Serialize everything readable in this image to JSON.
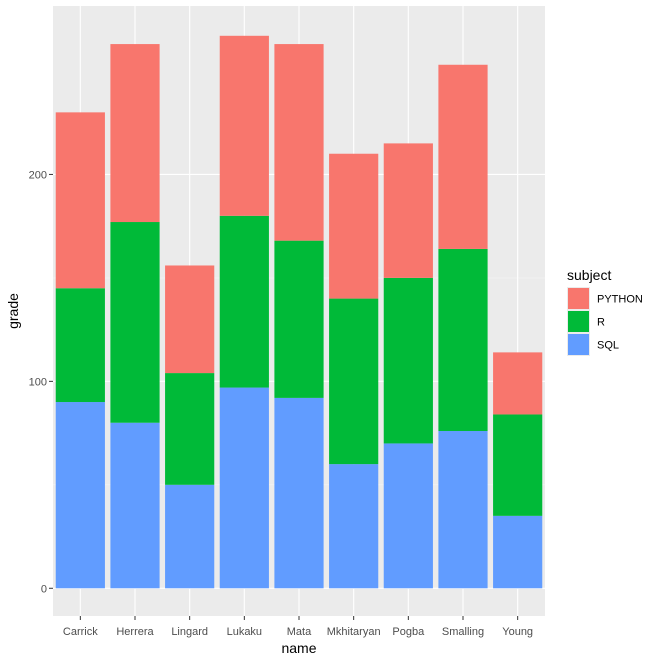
{
  "chart_data": {
    "type": "bar",
    "stacked": true,
    "xlabel": "name",
    "ylabel": "grade",
    "categories": [
      "Carrick",
      "Herrera",
      "Lingard",
      "Lukaku",
      "Mata",
      "Mkhitaryan",
      "Pogba",
      "Smalling",
      "Young"
    ],
    "series": [
      {
        "name": "SQL",
        "values": [
          90,
          80,
          50,
          97,
          92,
          60,
          70,
          76,
          35
        ]
      },
      {
        "name": "R",
        "values": [
          55,
          97,
          54,
          83,
          76,
          80,
          80,
          88,
          49
        ]
      },
      {
        "name": "PYTHON",
        "values": [
          85,
          86,
          52,
          87,
          95,
          70,
          65,
          89,
          30
        ]
      }
    ],
    "y_ticks": [
      0,
      100,
      200
    ],
    "ylim": [
      -13.4,
      281.4
    ],
    "grid": true,
    "legend": {
      "title": "subject",
      "placement": "right",
      "order": [
        "PYTHON",
        "R",
        "SQL"
      ]
    },
    "colors": {
      "PYTHON": "#F8766D",
      "R": "#00BA38",
      "SQL": "#619CFF",
      "panel_background": "#EBEBEB",
      "grid_major": "#FFFFFF",
      "grid_minor": "#F5F5F5"
    }
  }
}
